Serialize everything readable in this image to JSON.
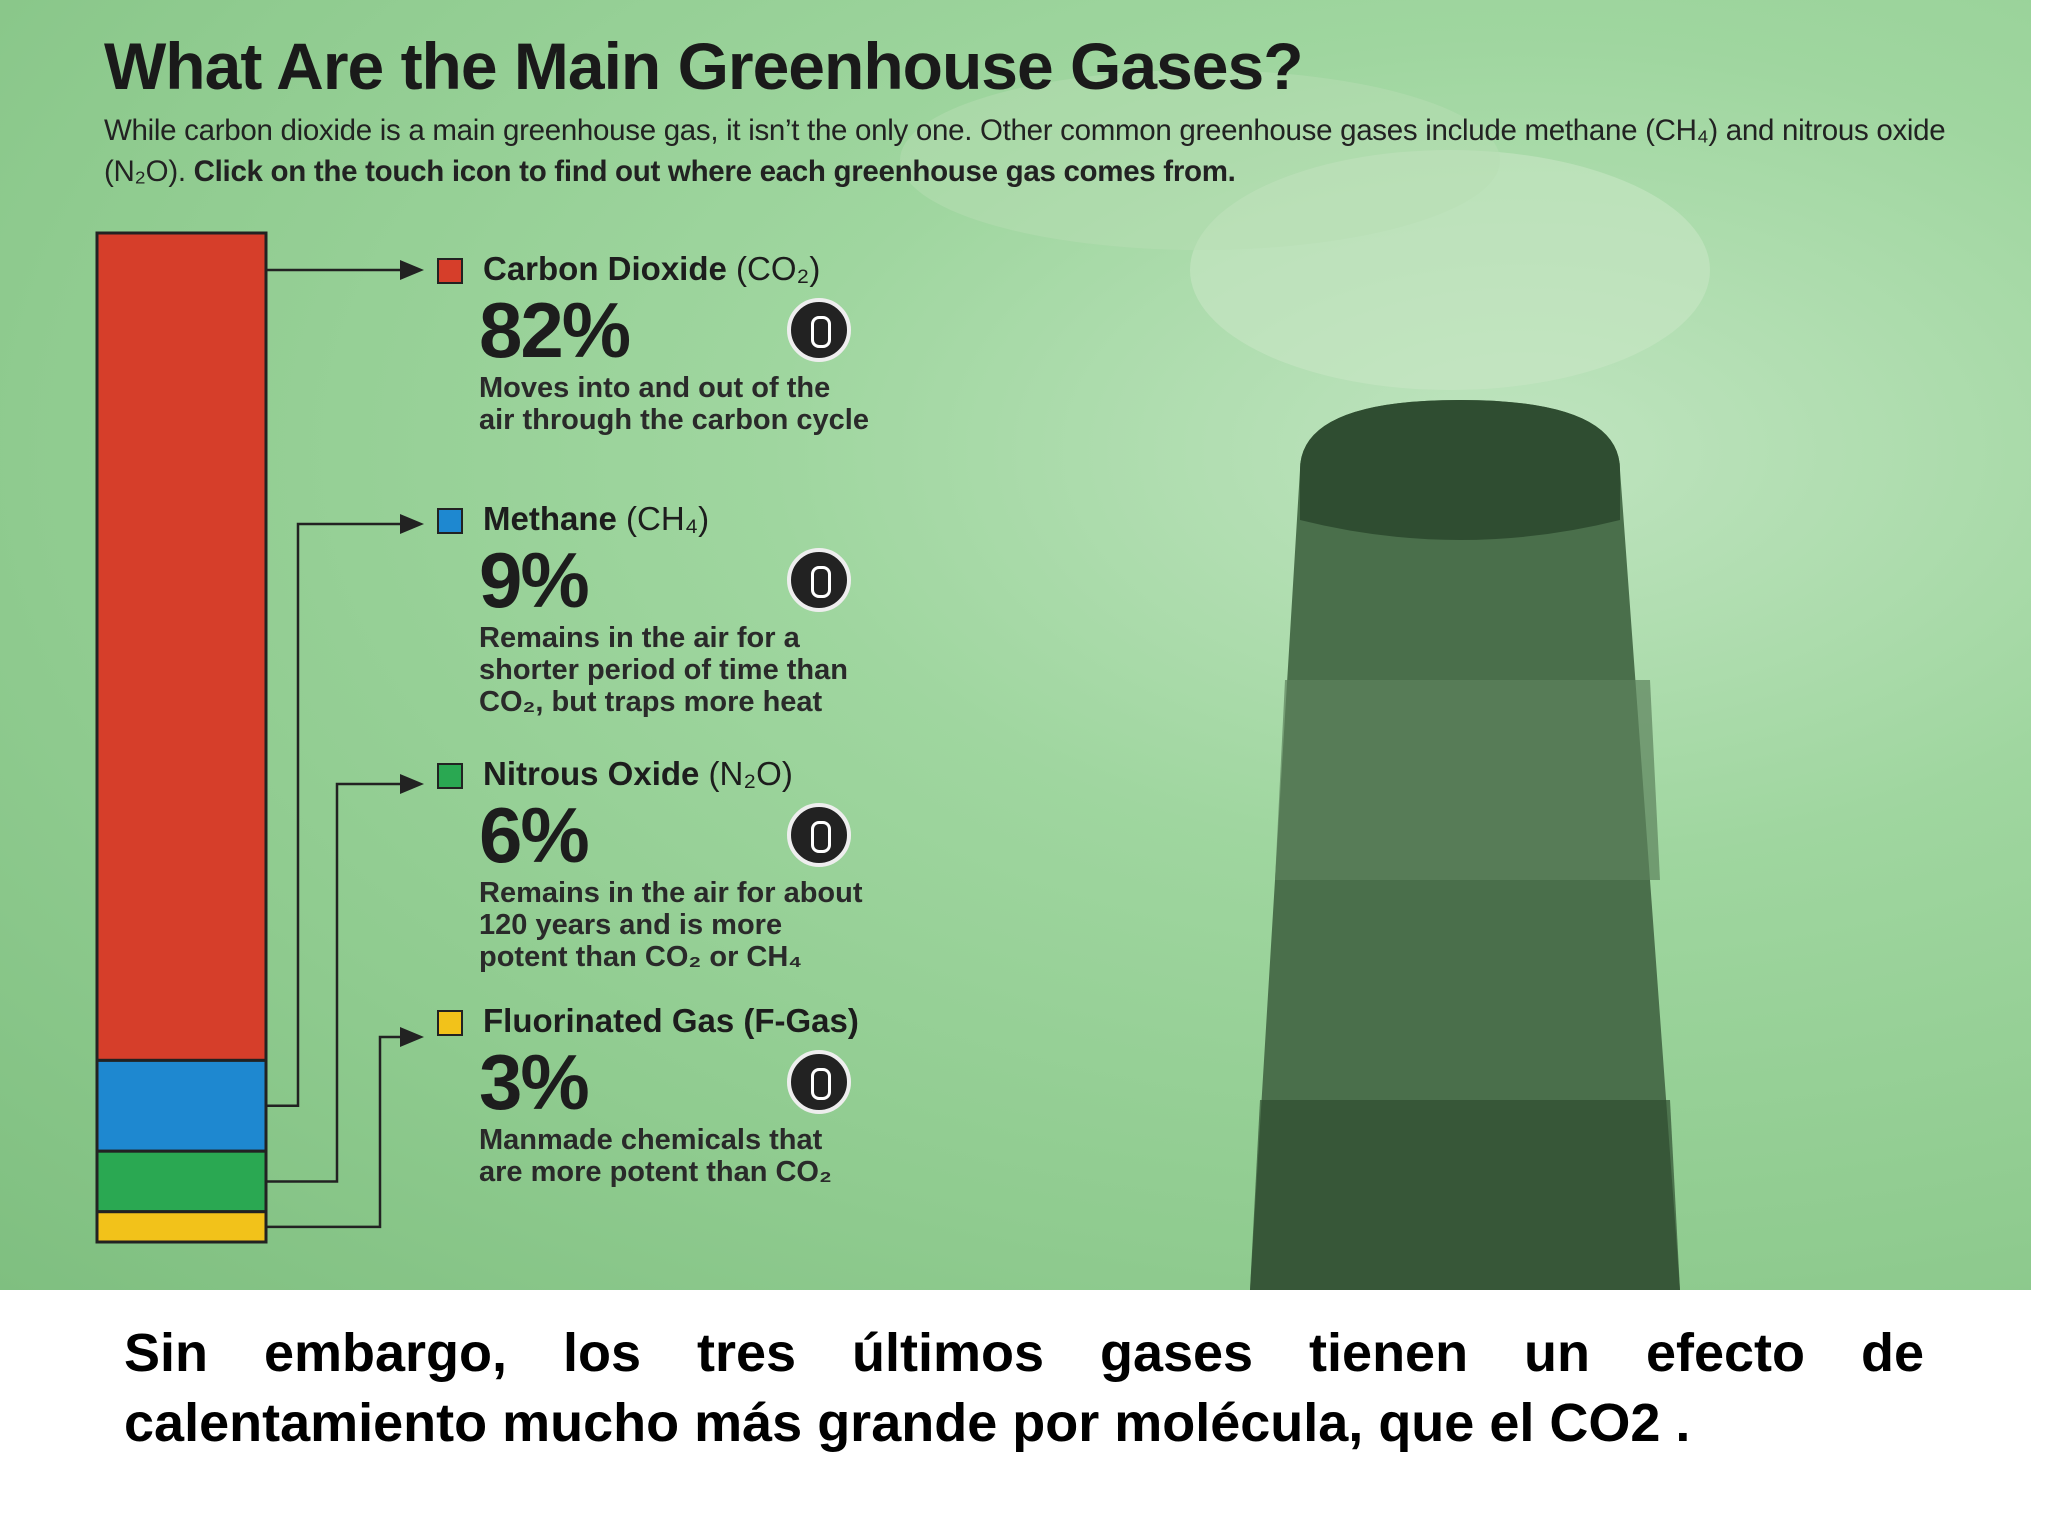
{
  "chart_data": {
    "type": "stacked-bar",
    "title": "What Are the Main Greenhouse Gases?",
    "subtitle": "While carbon dioxide is a main greenhouse gas, it isn’t the only one. Other common greenhouse gases include methane (CH₄) and nitrous oxide (N₂O).",
    "subtitle_emphasis": "Click on the touch icon to find out where each greenhouse gas comes from.",
    "ylim": [
      0,
      100
    ],
    "series": [
      {
        "name": "Carbon Dioxide",
        "formula": "(CO₂)",
        "color": "#d63e2a",
        "values": [
          82
        ],
        "value_labels": [
          "82%"
        ],
        "description": [
          "Moves into and out of the",
          "air through the carbon cycle"
        ]
      },
      {
        "name": "Methane",
        "formula": "(CH₄)",
        "color": "#1e88d0",
        "values": [
          9
        ],
        "value_labels": [
          "9%"
        ],
        "description": [
          "Remains in the air for a",
          "shorter period of time than",
          "CO₂, but traps more heat"
        ]
      },
      {
        "name": "Nitrous Oxide",
        "formula": "(N₂O)",
        "color": "#2aa852",
        "values": [
          6
        ],
        "value_labels": [
          "6%"
        ],
        "description": [
          "Remains in the air for about",
          "120 years and is more",
          "potent than CO₂ or CH₄"
        ]
      },
      {
        "name": "Fluorinated Gas (F-Gas)",
        "color": "#f2c21a",
        "values": [
          3
        ],
        "value_labels": [
          "3%"
        ],
        "description": [
          "Manmade chemicals that",
          "are more potent than CO₂"
        ]
      }
    ]
  },
  "caption": "Sin embargo, los tres últimos gases tienen un efecto de calentamiento mucho más grande por molécula, que el CO2 ."
}
